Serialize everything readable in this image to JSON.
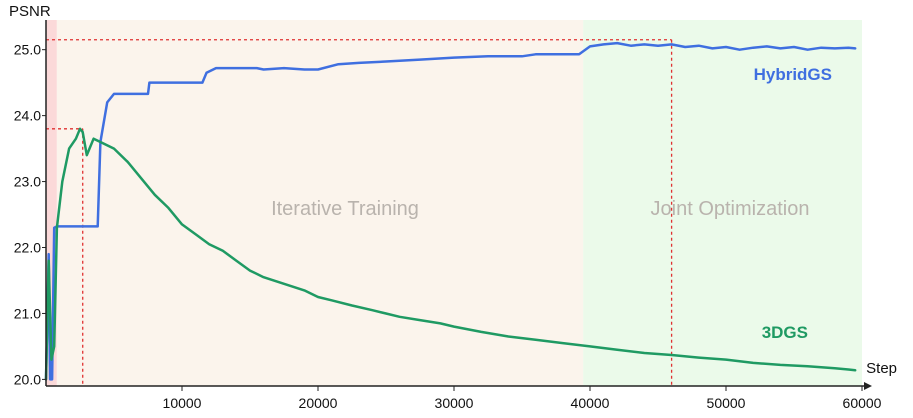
{
  "chart_data": {
    "type": "line",
    "xlabel": "Step",
    "ylabel": "PSNR",
    "xlim": [
      0,
      60000
    ],
    "ylim": [
      19.9,
      25.45
    ],
    "xticks": [
      10000,
      20000,
      30000,
      40000,
      50000,
      60000
    ],
    "xtick_labels": [
      "10000",
      "20000",
      "30000",
      "40000",
      "50000",
      "60000"
    ],
    "yticks": [
      20.0,
      21.0,
      22.0,
      23.0,
      24.0,
      25.0
    ],
    "ytick_labels": [
      "20.0",
      "21.0",
      "22.0",
      "23.0",
      "24.0",
      "25.0"
    ],
    "regions": [
      {
        "label": "",
        "x_start": 0,
        "x_end": 800,
        "color": "#fbd9d9"
      },
      {
        "label": "Iterative Training",
        "x_start": 800,
        "x_end": 39500,
        "color": "#fbf4ec"
      },
      {
        "label": "Joint Optimization",
        "x_start": 39500,
        "x_end": 60000,
        "color": "#ebfaea"
      }
    ],
    "reference_lines": [
      {
        "x": 2700,
        "y": 23.8,
        "color": "#e03131"
      },
      {
        "x": 46000,
        "y": 25.15,
        "color": "#e03131"
      }
    ],
    "series": [
      {
        "name": "HybridGS",
        "color": "#3f6fe0",
        "x": [
          0,
          200,
          300,
          450,
          600,
          800,
          2000,
          3800,
          4000,
          4500,
          5000,
          5800,
          6000,
          7000,
          7500,
          7600,
          9000,
          11500,
          11800,
          12500,
          15500,
          16000,
          17500,
          19000,
          20000,
          21500,
          23000,
          25000,
          27500,
          30000,
          32500,
          35000,
          36000,
          38000,
          39200,
          40000,
          41000,
          42000,
          43000,
          44000,
          45000,
          46000,
          47000,
          48000,
          49000,
          50000,
          51000,
          52000,
          53000,
          54000,
          55000,
          56000,
          57000,
          58000,
          59000,
          59500
        ],
        "y": [
          20.0,
          21.9,
          20.0,
          20.0,
          22.3,
          22.32,
          22.32,
          22.32,
          23.6,
          24.2,
          24.33,
          24.33,
          24.33,
          24.33,
          24.33,
          24.5,
          24.5,
          24.5,
          24.65,
          24.72,
          24.72,
          24.7,
          24.72,
          24.7,
          24.7,
          24.78,
          24.8,
          24.82,
          24.85,
          24.88,
          24.9,
          24.9,
          24.93,
          24.93,
          24.93,
          25.05,
          25.08,
          25.1,
          25.06,
          25.08,
          25.06,
          25.08,
          25.04,
          25.06,
          25.02,
          25.04,
          25.0,
          25.03,
          25.05,
          25.02,
          25.04,
          25.0,
          25.03,
          25.02,
          25.03,
          25.02
        ]
      },
      {
        "name": "3DGS",
        "color": "#1f9a63",
        "x": [
          0,
          200,
          400,
          600,
          800,
          1200,
          1700,
          2200,
          2500,
          2700,
          3000,
          3200,
          3500,
          4000,
          5000,
          6000,
          7000,
          8000,
          9000,
          10000,
          11000,
          12000,
          13000,
          14000,
          15000,
          16000,
          17500,
          19000,
          20000,
          21000,
          22500,
          24000,
          25000,
          26000,
          27500,
          29000,
          30000,
          32000,
          34000,
          36000,
          38000,
          40000,
          42000,
          44000,
          46000,
          48000,
          50000,
          52000,
          54000,
          56000,
          58000,
          59000,
          59500
        ],
        "y": [
          20.0,
          21.8,
          20.3,
          20.5,
          22.3,
          23.0,
          23.5,
          23.65,
          23.8,
          23.75,
          23.4,
          23.5,
          23.65,
          23.6,
          23.5,
          23.3,
          23.05,
          22.8,
          22.6,
          22.35,
          22.2,
          22.05,
          21.95,
          21.8,
          21.65,
          21.55,
          21.45,
          21.35,
          21.25,
          21.2,
          21.12,
          21.05,
          21.0,
          20.95,
          20.9,
          20.85,
          20.8,
          20.72,
          20.65,
          20.6,
          20.55,
          20.5,
          20.45,
          20.4,
          20.37,
          20.33,
          20.3,
          20.25,
          20.22,
          20.2,
          20.17,
          20.15,
          20.14
        ]
      }
    ],
    "annotations": [
      {
        "text": "Iterative Training",
        "type": "region-label"
      },
      {
        "text": "Joint Optimization",
        "type": "region-label"
      },
      {
        "text": "HybridGS",
        "type": "series-label"
      },
      {
        "text": "3DGS",
        "type": "series-label"
      }
    ]
  }
}
